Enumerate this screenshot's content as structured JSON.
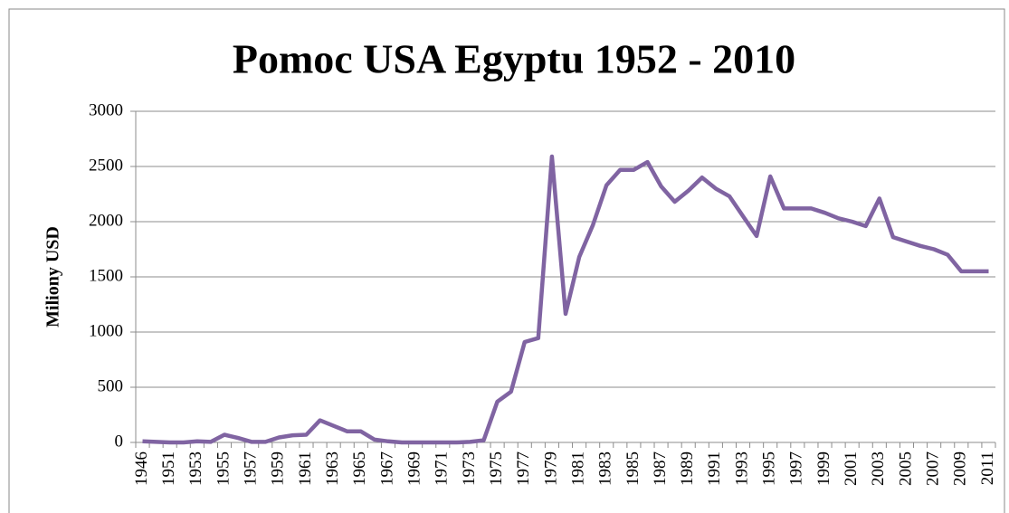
{
  "chart_data": {
    "type": "line",
    "title": "Pomoc USA Egyptu 1952 - 2010",
    "y_label": "Miliony USD",
    "categories": [
      "1946",
      null,
      "1951",
      null,
      "1953",
      null,
      "1955",
      null,
      "1957",
      null,
      "1959",
      null,
      "1961",
      null,
      "1963",
      null,
      "1965",
      null,
      "1967",
      null,
      "1969",
      null,
      "1971",
      null,
      "1973",
      null,
      "1975",
      null,
      "1977",
      null,
      "1979",
      null,
      "1981",
      null,
      "1983",
      null,
      "1985",
      null,
      "1987",
      null,
      "1989",
      null,
      "1991",
      null,
      "1993",
      null,
      "1995",
      null,
      "1997",
      null,
      "1999",
      null,
      "2001",
      null,
      "2003",
      null,
      "2005",
      null,
      "2007",
      null,
      "2009",
      null,
      "2011"
    ],
    "series": [
      {
        "name": "Pomoc",
        "color": "#8064a2",
        "values": [
          10,
          5,
          0,
          0,
          10,
          5,
          70,
          40,
          5,
          5,
          45,
          65,
          70,
          200,
          150,
          100,
          100,
          25,
          10,
          0,
          0,
          0,
          0,
          0,
          5,
          20,
          370,
          460,
          910,
          945,
          2590,
          1165,
          1680,
          1970,
          2330,
          2470,
          2470,
          2540,
          2320,
          2180,
          2280,
          2400,
          2300,
          2230,
          2050,
          1870,
          2410,
          2120,
          2120,
          2120,
          2080,
          2030,
          2000,
          1960,
          2210,
          1860,
          1820,
          1780,
          1750,
          1700,
          1550,
          1550,
          1550
        ]
      }
    ],
    "ylim": [
      0,
      3000
    ],
    "yticks": [
      0,
      500,
      1000,
      1500,
      2000,
      2500,
      3000
    ],
    "grid": true
  }
}
